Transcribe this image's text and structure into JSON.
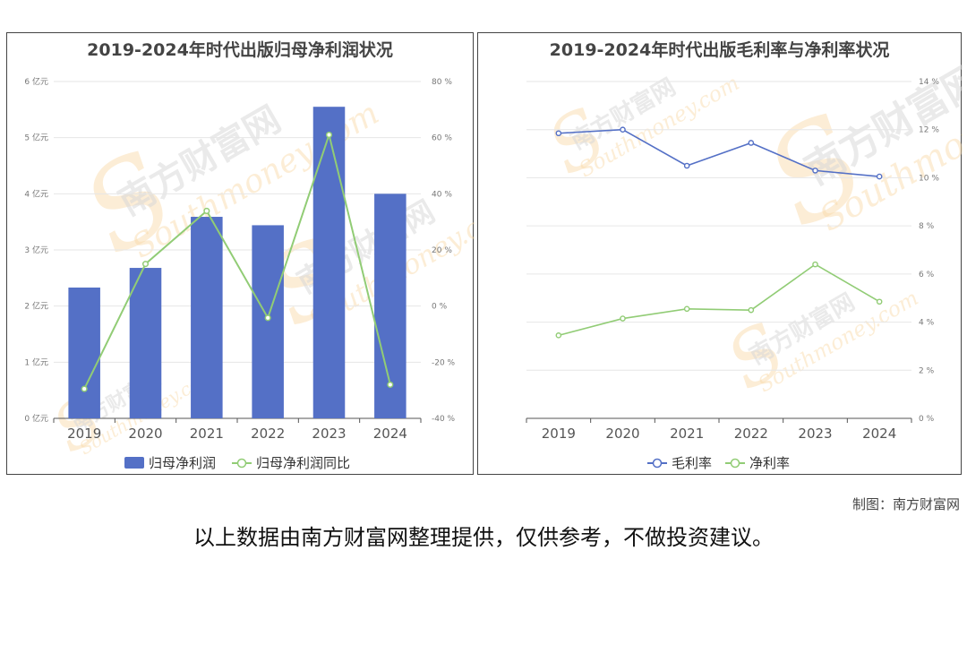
{
  "chart_data": [
    {
      "type": "bar+line",
      "title": "2019-2024年时代出版归母净利润状况",
      "categories": [
        "2019",
        "2020",
        "2021",
        "2022",
        "2023",
        "2024"
      ],
      "series": [
        {
          "name": "归母净利润",
          "type": "bar",
          "axis": "left",
          "color": "#5470c6",
          "values": [
            2.33,
            2.68,
            3.59,
            3.44,
            5.55,
            4.0
          ]
        },
        {
          "name": "归母净利润同比",
          "type": "line",
          "axis": "right",
          "color": "#91cc75",
          "values": [
            -29.5,
            15.0,
            33.9,
            -4.2,
            61.0,
            -28.0
          ]
        }
      ],
      "left_axis": {
        "min": 0,
        "max": 6,
        "step": 1,
        "ticks": [
          "0 亿元",
          "1 亿元",
          "2 亿元",
          "3 亿元",
          "4 亿元",
          "5 亿元",
          "6 亿元"
        ]
      },
      "right_axis": {
        "min": -40,
        "max": 80,
        "step": 20,
        "ticks": [
          "-40 %",
          "-20 %",
          "0 %",
          "20 %",
          "40 %",
          "60 %",
          "80 %"
        ]
      },
      "legend_position": "bottom-center",
      "grid": true
    },
    {
      "type": "line",
      "title": "2019-2024年时代出版毛利率与净利率状况",
      "categories": [
        "2019",
        "2020",
        "2021",
        "2022",
        "2023",
        "2024"
      ],
      "series": [
        {
          "name": "毛利率",
          "type": "line",
          "axis": "right",
          "color": "#5470c6",
          "values": [
            11.85,
            12.0,
            10.5,
            11.45,
            10.3,
            10.05
          ]
        },
        {
          "name": "净利率",
          "type": "line",
          "axis": "right",
          "color": "#91cc75",
          "values": [
            3.45,
            4.15,
            4.55,
            4.5,
            6.4,
            4.85
          ]
        }
      ],
      "right_axis": {
        "min": 0,
        "max": 14,
        "step": 2,
        "ticks": [
          "0 %",
          "2 %",
          "4 %",
          "6 %",
          "8 %",
          "10 %",
          "12 %",
          "14 %"
        ]
      },
      "legend_position": "bottom-center",
      "grid": true
    }
  ],
  "watermark": {
    "cn": "南方财富网",
    "en": "Southmoney.com"
  },
  "credit": "制图：南方财富网",
  "disclaimer": "以上数据由南方财富网整理提供，仅供参考，不做投资建议。"
}
